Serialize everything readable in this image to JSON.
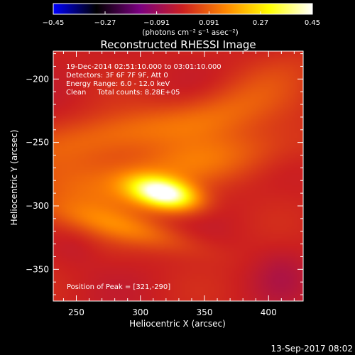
{
  "chart_data": {
    "type": "heatmap",
    "title": "Reconstructed RHESSI Image",
    "xlabel": "Heliocentric X (arcsec)",
    "ylabel": "Heliocentric Y (arcsec)",
    "xlim": [
      232,
      427
    ],
    "ylim": [
      -375,
      -178
    ],
    "x_ticks": [
      250,
      300,
      350,
      400
    ],
    "y_ticks": [
      -200,
      -250,
      -300,
      -350
    ],
    "x_tick_labels": [
      "250",
      "300",
      "350",
      "400"
    ],
    "y_tick_labels": [
      "−200",
      "−250",
      "−300",
      "−350"
    ],
    "colorbar": {
      "min": -0.45,
      "max": 0.45,
      "ticks": [
        -0.45,
        -0.27,
        -0.091,
        0.091,
        0.27,
        0.45
      ],
      "tick_labels": [
        "−0.45",
        "−0.27",
        "−0.091",
        "0.091",
        "0.27",
        "0.45"
      ],
      "units_label": "(photons cm⁻² s⁻¹ asec⁻²)",
      "colormap": [
        "#0000ff",
        "#000000",
        "#7a0080",
        "#cc2020",
        "#ff8800",
        "#ffff00",
        "#ffffff"
      ]
    },
    "annotations": [
      "19-Dec-2014 02:51:10.000 to 03:01:10.000",
      "Detectors: 3F 6F 7F 9F, Att 0",
      "Energy Range: 6.0 - 12.0 keV",
      "Clean     Total counts: 8.28E+05"
    ],
    "peak_label": "Position of Peak = [321,-290]",
    "peak": {
      "x": 321,
      "y": -290
    },
    "sources": [
      {
        "x": 318,
        "y": -290,
        "sx": 18,
        "sy": 8,
        "angle": -12,
        "amp": 0.45
      },
      {
        "x": 300,
        "y": -240,
        "sx": 60,
        "sy": 12,
        "angle": 10,
        "amp": 0.1
      },
      {
        "x": 350,
        "y": -265,
        "sx": 55,
        "sy": 14,
        "angle": 12,
        "amp": 0.1
      },
      {
        "x": 260,
        "y": -290,
        "sx": 40,
        "sy": 25,
        "angle": 0,
        "amp": 0.09
      },
      {
        "x": 290,
        "y": -318,
        "sx": 40,
        "sy": 8,
        "angle": -15,
        "amp": 0.09
      },
      {
        "x": 380,
        "y": -215,
        "sx": 45,
        "sy": 15,
        "angle": 30,
        "amp": 0.06
      },
      {
        "x": 410,
        "y": -355,
        "sx": 15,
        "sy": 15,
        "angle": 0,
        "amp": -0.04
      },
      {
        "x": 250,
        "y": -330,
        "sx": 15,
        "sy": 12,
        "angle": 0,
        "amp": -0.03
      }
    ]
  },
  "footer": {
    "timestamp": "13-Sep-2017 08:02"
  }
}
